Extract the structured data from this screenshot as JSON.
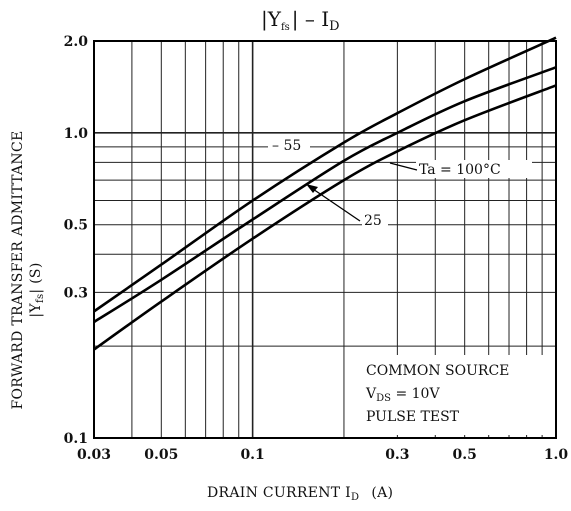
{
  "chart_data": {
    "type": "line",
    "title": {
      "main": "|Y",
      "main_sub": "fs",
      "sep": "| – I",
      "sep_sub": "D"
    },
    "xlabel": {
      "main": "DRAIN CURRENT  I",
      "sub": "D",
      "unit": "(A)"
    },
    "ylabel": {
      "line1": "FORWARD TRANSFER ADMITTANCE",
      "line2": "|Y",
      "line2_sub": "fs",
      "line2_rest": "|  (S)"
    },
    "x_scale": "log",
    "y_scale": "log",
    "xlim": [
      0.03,
      1.0
    ],
    "ylim": [
      0.1,
      2.0
    ],
    "x_tick_labels": [
      {
        "value": 0.03,
        "label": "0.03"
      },
      {
        "value": 0.05,
        "label": "0.05"
      },
      {
        "value": 0.1,
        "label": "0.1"
      },
      {
        "value": 0.3,
        "label": "0.3"
      },
      {
        "value": 0.5,
        "label": "0.5"
      },
      {
        "value": 1.0,
        "label": "1.0"
      }
    ],
    "y_tick_labels": [
      {
        "value": 0.1,
        "label": "0.1"
      },
      {
        "value": 0.3,
        "label": "0.3"
      },
      {
        "value": 0.5,
        "label": "0.5"
      },
      {
        "value": 1.0,
        "label": "1.0"
      },
      {
        "value": 2.0,
        "label": "2.0"
      }
    ],
    "x_gridlines": [
      0.03,
      0.04,
      0.05,
      0.06,
      0.07,
      0.08,
      0.09,
      0.1,
      0.2,
      0.3,
      0.4,
      0.5,
      0.6,
      0.7,
      0.8,
      0.9,
      1.0
    ],
    "y_gridlines": [
      0.1,
      0.2,
      0.3,
      0.4,
      0.5,
      0.6,
      0.7,
      0.8,
      0.9,
      1.0,
      2.0
    ],
    "grid": true,
    "series": [
      {
        "name": "-55",
        "x": [
          0.03,
          0.05,
          0.1,
          0.2,
          0.3,
          0.5,
          1.0
        ],
        "y": [
          0.26,
          0.37,
          0.6,
          0.93,
          1.16,
          1.5,
          2.05
        ]
      },
      {
        "name": "25",
        "x": [
          0.03,
          0.05,
          0.1,
          0.2,
          0.3,
          0.5,
          1.0
        ],
        "y": [
          0.24,
          0.33,
          0.52,
          0.81,
          1.0,
          1.27,
          1.64
        ]
      },
      {
        "name": "Ta = 100°C",
        "x": [
          0.03,
          0.05,
          0.1,
          0.2,
          0.3,
          0.5,
          1.0
        ],
        "y": [
          0.195,
          0.28,
          0.45,
          0.7,
          0.87,
          1.1,
          1.43
        ]
      }
    ],
    "annotations": {
      "label_m55": "– 55",
      "label_25": "25",
      "label_100": "Ta = 100°C"
    },
    "conditions": {
      "line1": "COMMON SOURCE",
      "line2_main": "V",
      "line2_sub": "DS",
      "line2_rest": " = 10V",
      "line3": "PULSE TEST"
    }
  }
}
